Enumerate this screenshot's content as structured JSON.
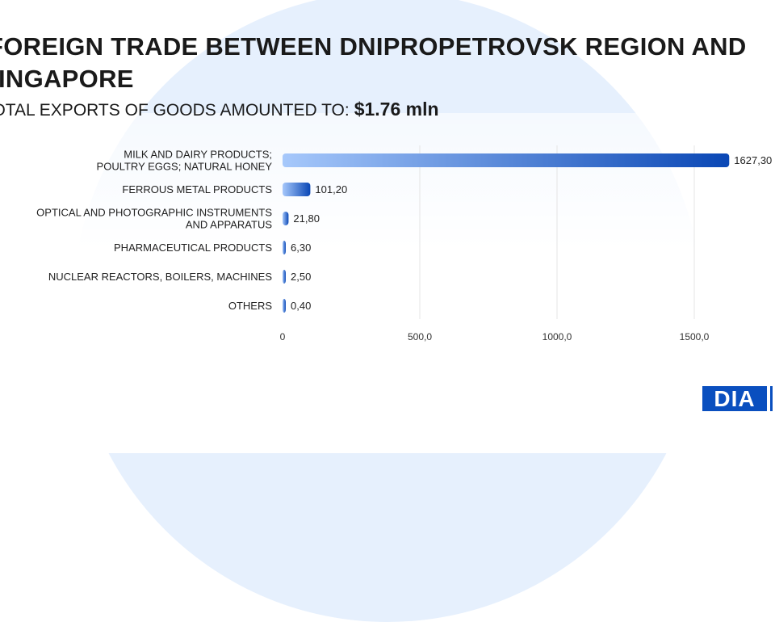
{
  "header": {
    "title_line1": "FOREIGN TRADE BETWEEN DNIPROPETROVSK REGION AND",
    "title_line2": "SINGAPORE",
    "subtitle": "TOTAL EXPORTS OF GOODS AMOUNTED TO:",
    "total": "$1.76  mln"
  },
  "logo": "DIA",
  "chart_data": {
    "type": "bar",
    "orientation": "horizontal",
    "categories": [
      [
        "MILK AND DAIRY PRODUCTS;",
        "POULTRY EGGS; NATURAL HONEY"
      ],
      [
        "FERROUS METAL PRODUCTS"
      ],
      [
        "OPTICAL AND PHOTOGRAPHIC INSTRUMENTS",
        "AND APPARATUS"
      ],
      [
        "PHARMACEUTICAL PRODUCTS"
      ],
      [
        "NUCLEAR REACTORS, BOILERS, MACHINES"
      ],
      [
        "OTHERS"
      ]
    ],
    "values": [
      1627.3,
      101.2,
      21.8,
      6.3,
      2.5,
      0.4
    ],
    "value_labels": [
      "1627,30",
      "101,20",
      "21,80",
      "6,30",
      "2,50",
      "0,40"
    ],
    "xticks": [
      0,
      500,
      1000,
      1500
    ],
    "xtick_labels": [
      "0",
      "500,0",
      "1000,0",
      "1500,0"
    ],
    "xlim": [
      0,
      1630
    ],
    "grid": true,
    "colors": [
      "#a6c8fb",
      "#0a47b5"
    ]
  }
}
